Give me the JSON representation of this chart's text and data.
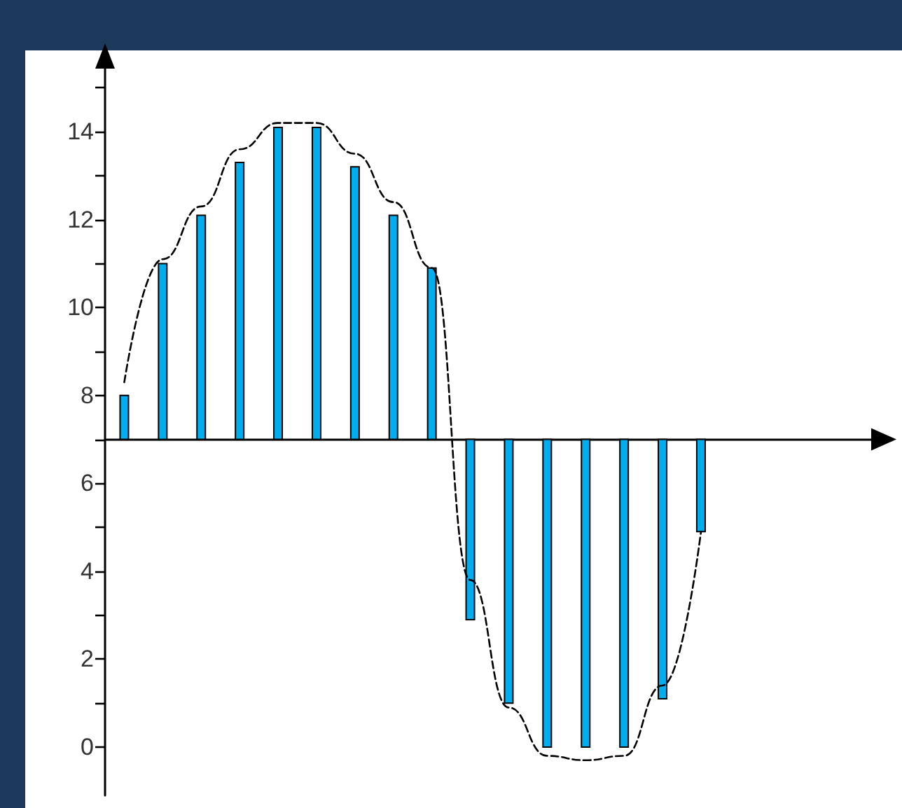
{
  "chart_data": {
    "type": "bar",
    "categories": [
      null,
      null,
      null,
      null,
      null,
      null,
      null,
      null,
      null,
      null,
      null,
      null,
      null,
      null,
      null,
      null
    ],
    "series": [
      {
        "color": "#00aeef",
        "base": [
          7,
          7,
          7,
          7,
          7,
          7,
          7,
          7,
          7,
          7,
          7,
          7,
          7,
          7,
          7,
          7
        ],
        "values": [
          1.0,
          4.0,
          5.1,
          6.3,
          7.1,
          7.1,
          6.2,
          5.1,
          3.9,
          -4.1,
          -6.0,
          -7.0,
          -7.0,
          -7.0,
          -5.9,
          -2.1
        ]
      },
      {
        "type": "line",
        "color": "#000000",
        "line_style": "dashed",
        "marker": "none",
        "values": [
          8.3,
          11.1,
          12.3,
          13.6,
          14.2,
          14.2,
          13.5,
          12.4,
          10.9,
          3.8,
          0.9,
          -0.2,
          -0.3,
          -0.2,
          1.4,
          4.9
        ]
      }
    ],
    "ylim": [
      -1.1,
      15.5
    ],
    "yticks": [
      0,
      {
        "value": 1,
        "label": null
      },
      2,
      {
        "value": 3,
        "label": null
      },
      4,
      {
        "value": 5,
        "label": null
      },
      6,
      {
        "value": 7,
        "label": null
      },
      8,
      {
        "value": 9,
        "label": null
      },
      10,
      {
        "value": 11,
        "label": null
      },
      12,
      {
        "value": 13,
        "label": null
      },
      14,
      {
        "value": 15,
        "label": null
      }
    ],
    "tick_labels": "y"
  }
}
